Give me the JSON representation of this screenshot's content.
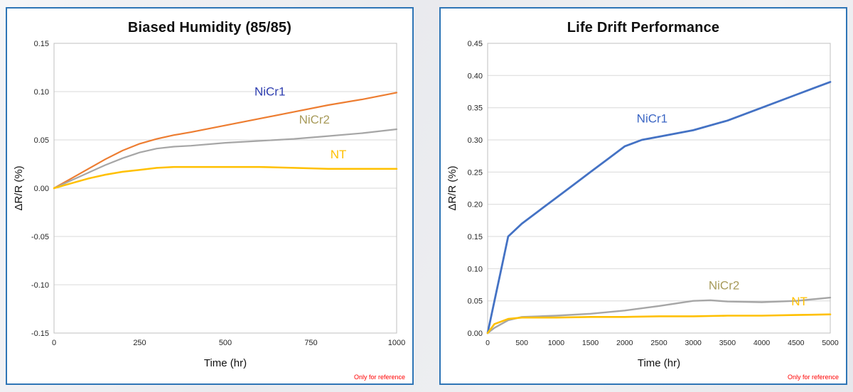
{
  "chart_data": [
    {
      "type": "line",
      "title": "Biased Humidity (85/85)",
      "xlabel": "Time (hr)",
      "ylabel": "ΔR/R (%)",
      "note": "Only for reference",
      "xlim": [
        0,
        1000
      ],
      "ylim": [
        -0.15,
        0.15
      ],
      "xticks": [
        0,
        250,
        500,
        750,
        1000
      ],
      "xtick_labels": [
        "0",
        "250",
        "500",
        "750",
        "1000"
      ],
      "yticks": [
        0.15,
        0.1,
        0.05,
        0.0,
        -0.05,
        -0.1,
        -0.15
      ],
      "ytick_labels": [
        "0.15",
        "0.10",
        "0.05",
        "0.00",
        "-0.05",
        "-0.10",
        "-0.15"
      ],
      "layout": {
        "margins": {
          "l": 58,
          "r": 14,
          "t": 6,
          "b": 54
        },
        "grid_color": "#d9d9d9",
        "border_color": "#bfbfbf",
        "tick_color": "#262626",
        "tick_font": 11,
        "xtick_font": 11,
        "label_font": 17
      },
      "series": [
        {
          "name": "NiCr1",
          "color": "#ED7D31",
          "label_color": "#2E3EB0",
          "line_width": 2.2,
          "label_x": 630,
          "label_y": 0.096,
          "x": [
            0,
            50,
            100,
            150,
            200,
            250,
            300,
            350,
            400,
            500,
            600,
            700,
            800,
            900,
            1000
          ],
          "y": [
            0,
            0.01,
            0.02,
            0.03,
            0.039,
            0.046,
            0.051,
            0.055,
            0.058,
            0.065,
            0.072,
            0.079,
            0.086,
            0.092,
            0.099
          ]
        },
        {
          "name": "NiCr2",
          "color": "#A6A6A6",
          "label_color": "#A89B5B",
          "line_width": 2.2,
          "label_x": 760,
          "label_y": 0.067,
          "x": [
            0,
            50,
            100,
            150,
            200,
            250,
            300,
            350,
            400,
            500,
            600,
            700,
            800,
            900,
            1000
          ],
          "y": [
            0,
            0.008,
            0.016,
            0.024,
            0.031,
            0.037,
            0.041,
            0.043,
            0.044,
            0.047,
            0.049,
            0.051,
            0.054,
            0.057,
            0.061
          ]
        },
        {
          "name": "NT",
          "color": "#FFC000",
          "label_color": "#FFC000",
          "line_width": 2.5,
          "label_x": 830,
          "label_y": 0.031,
          "x": [
            0,
            50,
            100,
            150,
            200,
            250,
            300,
            350,
            400,
            500,
            600,
            700,
            800,
            900,
            1000
          ],
          "y": [
            0,
            0.005,
            0.01,
            0.014,
            0.017,
            0.019,
            0.021,
            0.022,
            0.022,
            0.022,
            0.022,
            0.021,
            0.02,
            0.02,
            0.02
          ]
        }
      ]
    },
    {
      "type": "line",
      "title": "Life Drift Performance",
      "xlabel": "Time (hr)",
      "ylabel": "ΔR/R (%)",
      "note": "Only for reference",
      "xlim": [
        0,
        5000
      ],
      "ylim": [
        0,
        0.45
      ],
      "xticks": [
        0,
        500,
        1000,
        1500,
        2000,
        2500,
        3000,
        3500,
        4000,
        4500,
        5000
      ],
      "xtick_labels": [
        "0",
        "500",
        "1000",
        "1500",
        "2000",
        "2500",
        "3000",
        "3500",
        "4000",
        "4500",
        "5000"
      ],
      "yticks": [
        0.45,
        0.4,
        0.35,
        0.3,
        0.25,
        0.2,
        0.15,
        0.1,
        0.05,
        0.0
      ],
      "ytick_labels": [
        "0.45",
        "0.40",
        "0.35",
        "0.30",
        "0.25",
        "0.20",
        "0.15",
        "0.10",
        "0.05",
        "0.00"
      ],
      "layout": {
        "margins": {
          "l": 58,
          "r": 14,
          "t": 6,
          "b": 54
        },
        "grid_color": "#d9d9d9",
        "border_color": "#bfbfbf",
        "tick_color": "#262626",
        "tick_font": 11,
        "xtick_font": 10.5,
        "label_font": 17
      },
      "series": [
        {
          "name": "NiCr1",
          "color": "#4472C4",
          "label_color": "#3B66C4",
          "line_width": 2.8,
          "label_x": 2400,
          "label_y": 0.327,
          "x": [
            0,
            100,
            200,
            300,
            500,
            750,
            1000,
            1250,
            1500,
            1750,
            2000,
            2250,
            2500,
            3000,
            3500,
            4000,
            4500,
            5000
          ],
          "y": [
            0,
            0.05,
            0.1,
            0.15,
            0.17,
            0.19,
            0.21,
            0.23,
            0.25,
            0.27,
            0.29,
            0.3,
            0.305,
            0.315,
            0.33,
            0.35,
            0.37,
            0.39
          ]
        },
        {
          "name": "NiCr2",
          "color": "#A6A6A6",
          "label_color": "#A89B5B",
          "line_width": 2.4,
          "label_x": 3450,
          "label_y": 0.068,
          "x": [
            0,
            100,
            300,
            500,
            750,
            1000,
            1500,
            2000,
            2500,
            3000,
            3250,
            3500,
            4000,
            4500,
            5000
          ],
          "y": [
            0,
            0.008,
            0.02,
            0.025,
            0.026,
            0.027,
            0.03,
            0.035,
            0.042,
            0.05,
            0.051,
            0.049,
            0.048,
            0.05,
            0.055
          ]
        },
        {
          "name": "NT",
          "color": "#FFC000",
          "label_color": "#FFC000",
          "line_width": 2.6,
          "label_x": 4550,
          "label_y": 0.043,
          "x": [
            0,
            100,
            300,
            500,
            1000,
            1500,
            2000,
            2500,
            3000,
            3500,
            4000,
            4500,
            5000
          ],
          "y": [
            0,
            0.014,
            0.022,
            0.024,
            0.024,
            0.025,
            0.025,
            0.026,
            0.026,
            0.027,
            0.027,
            0.028,
            0.029
          ]
        }
      ]
    }
  ]
}
